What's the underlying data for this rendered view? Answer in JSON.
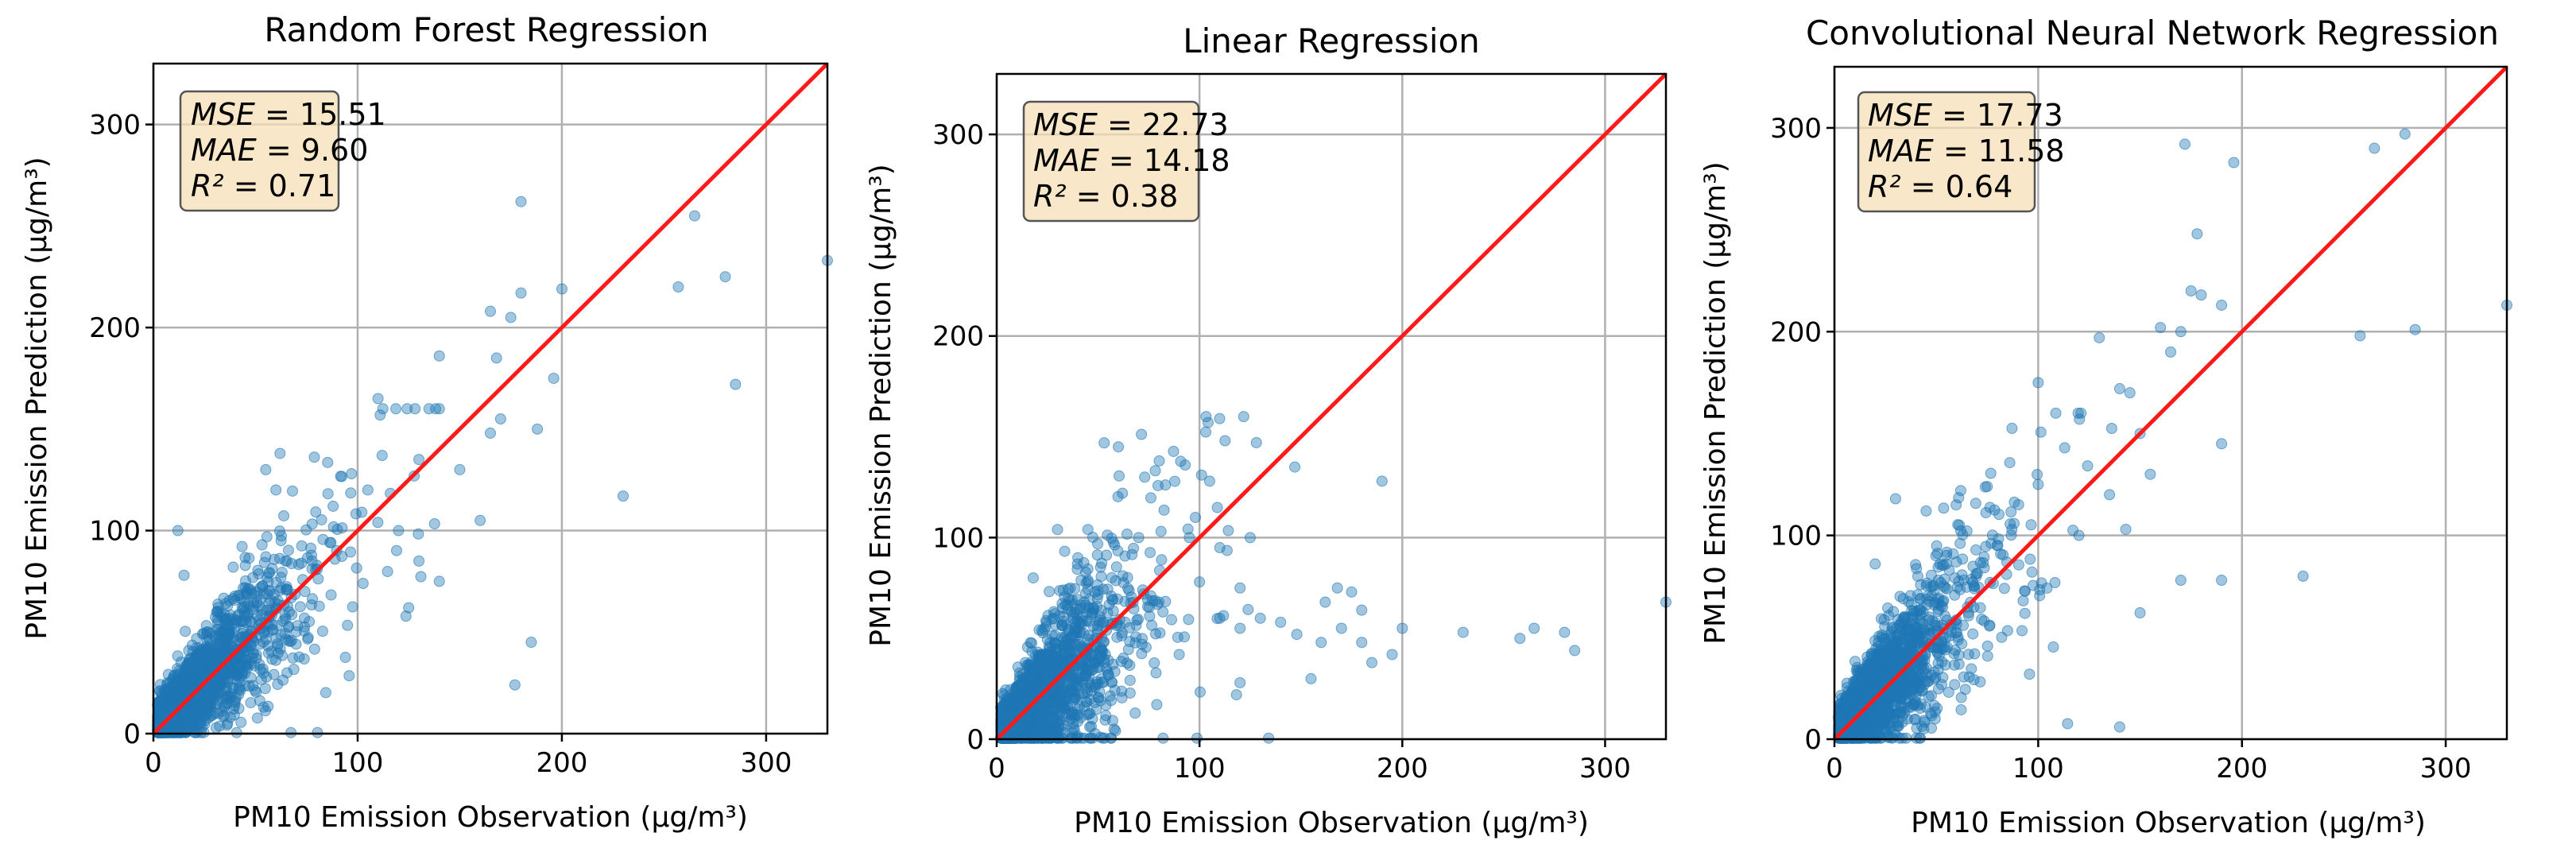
{
  "chart_data": [
    {
      "type": "scatter",
      "title": "Random Forest Regression",
      "xlabel": "PM10 Emission Observation (μg/m³)",
      "ylabel": "PM10 Emission Prediction (μg/m³)",
      "xlim": [
        0,
        330
      ],
      "ylim": [
        0,
        330
      ],
      "xticks": [
        0,
        100,
        200,
        300
      ],
      "yticks": [
        0,
        100,
        200,
        300
      ],
      "grid": true,
      "reference_line": {
        "type": "identity",
        "color": "#ff1a1a"
      },
      "point_color": "#1f77b4",
      "stats": [
        {
          "label": "MSE",
          "value": "15.51"
        },
        {
          "label": "MAE",
          "value": "9.60"
        },
        {
          "label": "R²",
          "value": "0.71"
        }
      ],
      "spread": 0.3,
      "seed": 11,
      "n_bulk": 2100,
      "outliers": [
        [
          12,
          100
        ],
        [
          265,
          255
        ],
        [
          280,
          225
        ],
        [
          257,
          220
        ],
        [
          330,
          233
        ],
        [
          285,
          172
        ],
        [
          200,
          219
        ],
        [
          196,
          175
        ],
        [
          188,
          150
        ],
        [
          230,
          117
        ],
        [
          185,
          45
        ],
        [
          177,
          24
        ],
        [
          180,
          262
        ],
        [
          165,
          208
        ],
        [
          175,
          205
        ],
        [
          180,
          217
        ],
        [
          168,
          185
        ],
        [
          140,
          186
        ],
        [
          140,
          160
        ],
        [
          130,
          135
        ],
        [
          110,
          165
        ],
        [
          105,
          120
        ],
        [
          97,
          128
        ],
        [
          62,
          138
        ],
        [
          55,
          130
        ],
        [
          60,
          120
        ],
        [
          15,
          78
        ],
        [
          170,
          155
        ],
        [
          165,
          148
        ],
        [
          150,
          130
        ],
        [
          160,
          105
        ],
        [
          130,
          85
        ],
        [
          140,
          75
        ],
        [
          125,
          62
        ],
        [
          120,
          100
        ],
        [
          112,
          137
        ],
        [
          88,
          112
        ]
      ]
    },
    {
      "type": "scatter",
      "title": "Linear Regression",
      "xlabel": "PM10 Emission Observation (μg/m³)",
      "ylabel": "PM10 Emission Prediction (μg/m³)",
      "xlim": [
        0,
        330
      ],
      "ylim": [
        0,
        330
      ],
      "xticks": [
        0,
        100,
        200,
        300
      ],
      "yticks": [
        0,
        100,
        200,
        300
      ],
      "grid": true,
      "reference_line": {
        "type": "identity",
        "color": "#ff1a1a"
      },
      "point_color": "#1f77b4",
      "stats": [
        {
          "label": "MSE",
          "value": "22.73"
        },
        {
          "label": "MAE",
          "value": "14.18"
        },
        {
          "label": "R²",
          "value": "0.38"
        }
      ],
      "spread": 0.42,
      "seed": 23,
      "n_bulk": 2200,
      "outliers": [
        [
          60,
          145
        ],
        [
          53,
          147
        ],
        [
          101,
          131
        ],
        [
          105,
          128
        ],
        [
          98,
          110
        ],
        [
          95,
          100
        ],
        [
          125,
          100
        ],
        [
          110,
          95
        ],
        [
          147,
          135
        ],
        [
          190,
          128
        ],
        [
          120,
          75
        ],
        [
          168,
          75
        ],
        [
          175,
          73
        ],
        [
          162,
          68
        ],
        [
          148,
          52
        ],
        [
          160,
          48
        ],
        [
          170,
          55
        ],
        [
          180,
          48
        ],
        [
          200,
          55
        ],
        [
          230,
          53
        ],
        [
          258,
          50
        ],
        [
          265,
          55
        ],
        [
          280,
          53
        ],
        [
          285,
          44
        ],
        [
          330,
          68
        ],
        [
          180,
          64
        ],
        [
          140,
          58
        ],
        [
          130,
          60
        ],
        [
          195,
          42
        ],
        [
          185,
          38
        ],
        [
          155,
          30
        ],
        [
          120,
          28
        ],
        [
          120,
          55
        ],
        [
          110,
          60
        ],
        [
          100,
          78
        ],
        [
          80,
          68
        ],
        [
          90,
          42
        ],
        [
          70,
          100
        ],
        [
          62,
          122
        ],
        [
          45,
          104
        ],
        [
          40,
          90
        ],
        [
          30,
          104
        ],
        [
          18,
          80
        ]
      ]
    },
    {
      "type": "scatter",
      "title": "Convolutional Neural Network Regression",
      "xlabel": "PM10 Emission Observation (μg/m³)",
      "ylabel": "PM10 Emission Prediction (μg/m³)",
      "xlim": [
        0,
        330
      ],
      "ylim": [
        0,
        330
      ],
      "xticks": [
        0,
        100,
        200,
        300
      ],
      "yticks": [
        0,
        100,
        200,
        300
      ],
      "grid": true,
      "reference_line": {
        "type": "identity",
        "color": "#ff1a1a"
      },
      "point_color": "#1f77b4",
      "stats": [
        {
          "label": "MSE",
          "value": "17.73"
        },
        {
          "label": "MAE",
          "value": "11.58"
        },
        {
          "label": "R²",
          "value": "0.64"
        }
      ],
      "spread": 0.35,
      "seed": 37,
      "n_bulk": 2150,
      "outliers": [
        [
          172,
          292
        ],
        [
          196,
          283
        ],
        [
          280,
          297
        ],
        [
          265,
          290
        ],
        [
          330,
          213
        ],
        [
          258,
          198
        ],
        [
          285,
          201
        ],
        [
          178,
          248
        ],
        [
          175,
          220
        ],
        [
          180,
          218
        ],
        [
          190,
          213
        ],
        [
          170,
          200
        ],
        [
          160,
          202
        ],
        [
          165,
          190
        ],
        [
          130,
          197
        ],
        [
          100,
          175
        ],
        [
          140,
          172
        ],
        [
          145,
          170
        ],
        [
          150,
          150
        ],
        [
          155,
          130
        ],
        [
          143,
          103
        ],
        [
          135,
          120
        ],
        [
          190,
          145
        ],
        [
          230,
          80
        ],
        [
          190,
          78
        ],
        [
          170,
          78
        ],
        [
          150,
          62
        ],
        [
          140,
          6
        ],
        [
          120,
          100
        ],
        [
          113,
          143
        ],
        [
          100,
          125
        ],
        [
          75,
          124
        ],
        [
          62,
          122
        ],
        [
          45,
          112
        ],
        [
          30,
          118
        ],
        [
          20,
          86
        ]
      ]
    }
  ]
}
